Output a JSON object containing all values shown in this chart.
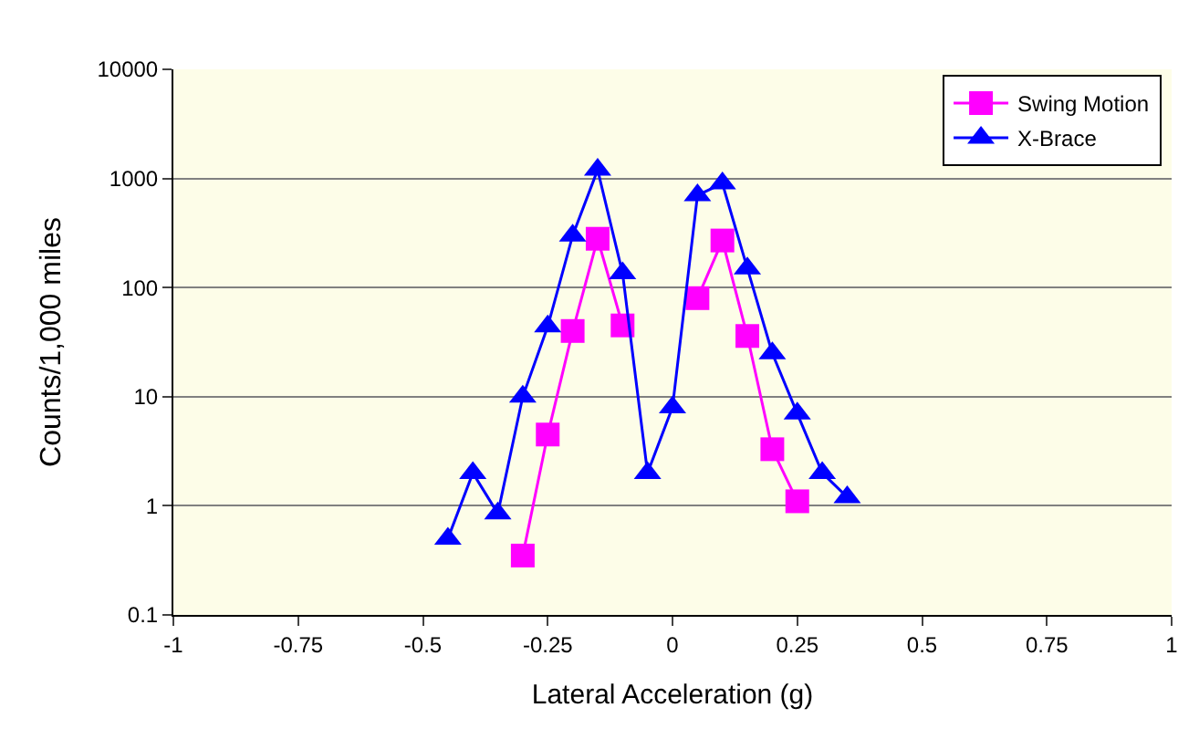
{
  "chart_data": {
    "type": "line",
    "xlabel": "Lateral Acceleration (g)",
    "ylabel": "Counts/1,000 miles",
    "log": "y",
    "xlim": [
      -1,
      1
    ],
    "xticks": [
      -1,
      -0.75,
      -0.5,
      -0.25,
      0,
      0.25,
      0.5,
      0.75,
      1
    ],
    "ylim": [
      0.1,
      10000
    ],
    "yticks": [
      0.1,
      1,
      10,
      100,
      1000,
      10000
    ],
    "grid": "y",
    "legend": "top right",
    "series": [
      {
        "name": "Swing Motion",
        "color": "#ff00ff",
        "marker": "square",
        "x": [
          -0.3,
          -0.25,
          -0.2,
          -0.15,
          -0.1,
          -0.05,
          0,
          0.05,
          0.1,
          0.15,
          0.2,
          0.25
        ],
        "values": [
          0.35,
          4.5,
          40,
          280,
          45,
          null,
          null,
          80,
          270,
          36,
          3.3,
          1.1
        ]
      },
      {
        "name": "X-Brace",
        "color": "#0000ff",
        "marker": "triangle",
        "x": [
          -0.45,
          -0.4,
          -0.35,
          -0.3,
          -0.25,
          -0.2,
          -0.15,
          -0.1,
          -0.05,
          0,
          0.05,
          0.1,
          0.15,
          0.2,
          0.25,
          0.3,
          0.35
        ],
        "values": [
          0.5,
          2,
          0.85,
          10,
          44,
          300,
          1200,
          135,
          2,
          8,
          700,
          900,
          150,
          25,
          7,
          2,
          1.2
        ]
      }
    ]
  }
}
